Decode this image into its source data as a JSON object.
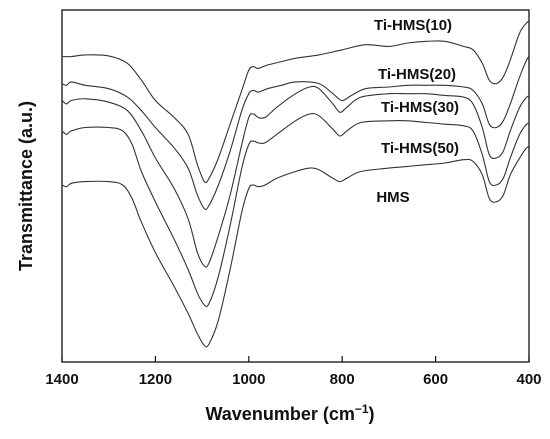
{
  "chart_data": {
    "type": "line",
    "title": "",
    "xlabel": "Wavenumber (cm",
    "xlabel_sup": "−1",
    "xlabel_end": ")",
    "ylabel": "Transmittance (a.u.)",
    "xlim": [
      1400,
      400
    ],
    "x_reversed": true,
    "ylim": [
      0,
      100
    ],
    "y_ticks_shown": false,
    "x_ticks": [
      1400,
      1200,
      1000,
      800,
      600,
      400
    ],
    "grid": false,
    "legend": "none",
    "series": [
      {
        "name": "Ti-HMS(10)",
        "points": [
          [
            1400,
            88
          ],
          [
            1380,
            88
          ],
          [
            1350,
            88.5
          ],
          [
            1300,
            88.2
          ],
          [
            1260,
            86
          ],
          [
            1230,
            81
          ],
          [
            1200,
            75
          ],
          [
            1160,
            70
          ],
          [
            1130,
            65
          ],
          [
            1110,
            56
          ],
          [
            1095,
            51
          ],
          [
            1085,
            52
          ],
          [
            1065,
            58
          ],
          [
            1040,
            68
          ],
          [
            1015,
            78
          ],
          [
            1000,
            84
          ],
          [
            990,
            85
          ],
          [
            980,
            84.5
          ],
          [
            960,
            85.5
          ],
          [
            930,
            86.5
          ],
          [
            900,
            87.5
          ],
          [
            850,
            88.5
          ],
          [
            800,
            90
          ],
          [
            750,
            91.5
          ],
          [
            700,
            91
          ],
          [
            660,
            92
          ],
          [
            620,
            92.5
          ],
          [
            580,
            92.5
          ],
          [
            540,
            91
          ],
          [
            520,
            90
          ],
          [
            500,
            86
          ],
          [
            485,
            81
          ],
          [
            470,
            80
          ],
          [
            455,
            82
          ],
          [
            440,
            87
          ],
          [
            420,
            95
          ],
          [
            405,
            98
          ],
          [
            400,
            98.5
          ]
        ]
      },
      {
        "name": "Ti-HMS(20)",
        "points": [
          [
            1400,
            80
          ],
          [
            1390,
            79.5
          ],
          [
            1380,
            80.5
          ],
          [
            1350,
            79.5
          ],
          [
            1300,
            78.5
          ],
          [
            1260,
            76
          ],
          [
            1230,
            72
          ],
          [
            1200,
            67
          ],
          [
            1160,
            61
          ],
          [
            1130,
            55
          ],
          [
            1110,
            47
          ],
          [
            1095,
            43
          ],
          [
            1085,
            44
          ],
          [
            1065,
            50
          ],
          [
            1040,
            60
          ],
          [
            1015,
            72
          ],
          [
            1000,
            77
          ],
          [
            990,
            78
          ],
          [
            980,
            77.5
          ],
          [
            960,
            78.5
          ],
          [
            930,
            79.5
          ],
          [
            900,
            80.5
          ],
          [
            850,
            80
          ],
          [
            820,
            77
          ],
          [
            800,
            75
          ],
          [
            780,
            76.5
          ],
          [
            750,
            78.5
          ],
          [
            700,
            79
          ],
          [
            660,
            79.5
          ],
          [
            620,
            79.5
          ],
          [
            580,
            79.5
          ],
          [
            540,
            79
          ],
          [
            520,
            78
          ],
          [
            500,
            74
          ],
          [
            485,
            68
          ],
          [
            470,
            67
          ],
          [
            455,
            69
          ],
          [
            440,
            74
          ],
          [
            420,
            82
          ],
          [
            405,
            87
          ],
          [
            400,
            88
          ]
        ]
      },
      {
        "name": "Ti-HMS(30)",
        "points": [
          [
            1400,
            75
          ],
          [
            1390,
            74
          ],
          [
            1380,
            75
          ],
          [
            1350,
            75.5
          ],
          [
            1300,
            74.5
          ],
          [
            1260,
            72
          ],
          [
            1230,
            66
          ],
          [
            1200,
            58
          ],
          [
            1160,
            49
          ],
          [
            1130,
            40
          ],
          [
            1110,
            30
          ],
          [
            1095,
            26
          ],
          [
            1085,
            27
          ],
          [
            1065,
            35
          ],
          [
            1040,
            47
          ],
          [
            1015,
            62
          ],
          [
            1000,
            70
          ],
          [
            990,
            71
          ],
          [
            980,
            70
          ],
          [
            965,
            70
          ],
          [
            940,
            73
          ],
          [
            900,
            77
          ],
          [
            870,
            79
          ],
          [
            850,
            78.5
          ],
          [
            820,
            74
          ],
          [
            805,
            71.5
          ],
          [
            790,
            73
          ],
          [
            760,
            76
          ],
          [
            700,
            77
          ],
          [
            660,
            77
          ],
          [
            620,
            77
          ],
          [
            580,
            76.5
          ],
          [
            540,
            76
          ],
          [
            520,
            74
          ],
          [
            500,
            67
          ],
          [
            485,
            59
          ],
          [
            470,
            58
          ],
          [
            455,
            60
          ],
          [
            440,
            66
          ],
          [
            420,
            73
          ],
          [
            405,
            76
          ],
          [
            400,
            76
          ]
        ]
      },
      {
        "name": "Ti-HMS(50)",
        "points": [
          [
            1400,
            66
          ],
          [
            1390,
            65
          ],
          [
            1380,
            66
          ],
          [
            1350,
            67
          ],
          [
            1300,
            67
          ],
          [
            1270,
            66
          ],
          [
            1250,
            62
          ],
          [
            1230,
            54
          ],
          [
            1200,
            45
          ],
          [
            1160,
            34
          ],
          [
            1130,
            25
          ],
          [
            1110,
            18
          ],
          [
            1095,
            14.5
          ],
          [
            1085,
            15
          ],
          [
            1065,
            23
          ],
          [
            1040,
            38
          ],
          [
            1015,
            55
          ],
          [
            1000,
            62
          ],
          [
            990,
            63
          ],
          [
            980,
            62.5
          ],
          [
            965,
            62.5
          ],
          [
            940,
            65
          ],
          [
            900,
            69
          ],
          [
            870,
            71
          ],
          [
            850,
            70.5
          ],
          [
            820,
            66.5
          ],
          [
            805,
            64.5
          ],
          [
            790,
            66
          ],
          [
            760,
            68.5
          ],
          [
            700,
            69
          ],
          [
            660,
            69
          ],
          [
            620,
            68.5
          ],
          [
            580,
            68
          ],
          [
            540,
            67.5
          ],
          [
            520,
            66
          ],
          [
            500,
            59
          ],
          [
            485,
            51
          ],
          [
            470,
            50
          ],
          [
            455,
            52
          ],
          [
            440,
            58
          ],
          [
            420,
            65
          ],
          [
            405,
            68
          ],
          [
            400,
            68
          ]
        ]
      },
      {
        "name": "HMS",
        "points": [
          [
            1400,
            50
          ],
          [
            1390,
            49.5
          ],
          [
            1380,
            50.5
          ],
          [
            1350,
            51
          ],
          [
            1300,
            51
          ],
          [
            1270,
            50
          ],
          [
            1250,
            46
          ],
          [
            1230,
            39
          ],
          [
            1200,
            30
          ],
          [
            1160,
            20
          ],
          [
            1130,
            12
          ],
          [
            1110,
            6
          ],
          [
            1095,
            2.5
          ],
          [
            1085,
            3
          ],
          [
            1065,
            10
          ],
          [
            1040,
            25
          ],
          [
            1015,
            42
          ],
          [
            1000,
            49
          ],
          [
            990,
            50
          ],
          [
            980,
            49.5
          ],
          [
            965,
            50
          ],
          [
            940,
            52
          ],
          [
            900,
            54
          ],
          [
            870,
            55
          ],
          [
            850,
            54.5
          ],
          [
            820,
            52
          ],
          [
            805,
            51
          ],
          [
            790,
            52
          ],
          [
            760,
            54
          ],
          [
            700,
            55
          ],
          [
            660,
            55.5
          ],
          [
            620,
            56
          ],
          [
            580,
            56.5
          ],
          [
            540,
            57.5
          ],
          [
            520,
            57
          ],
          [
            500,
            53
          ],
          [
            485,
            46
          ],
          [
            470,
            45
          ],
          [
            455,
            47
          ],
          [
            440,
            53
          ],
          [
            420,
            58
          ],
          [
            405,
            61
          ],
          [
            400,
            61
          ]
        ]
      }
    ]
  }
}
